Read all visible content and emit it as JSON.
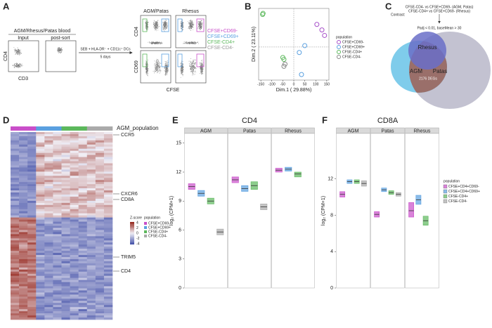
{
  "letters": [
    "A",
    "B",
    "C",
    "D",
    "E",
    "F"
  ],
  "panel_a": {
    "header": "AGM/Rhesus/Patas blood",
    "input": "Input",
    "post_sort": "post-sort",
    "y_label": "CD4",
    "x_label": "CD3",
    "stim": "SEB + HLA-DR⁻ + CD11c⁺ DCs",
    "days": "5 days",
    "col1": "AGM/Patas",
    "col2": "Rhesus",
    "row1": "CD4",
    "row2": "CD69",
    "x_label2": "CFSE",
    "legend": [
      {
        "label": "CFSE+CD69-",
        "color": "#c94fc9"
      },
      {
        "label": "CFSE+CD69+",
        "color": "#5aa0e0"
      },
      {
        "label": "CFSE-CD4+",
        "color": "#5cb85c"
      },
      {
        "label": "CFSE-CD4-",
        "color": "#999999"
      }
    ]
  },
  "panel_c": {
    "contrast": "Contrast:",
    "contrast_lines": [
      "CFSE-CD4- vs CFSE+CD69- (AGM, Patas)",
      "CFSE-CD4+ vs CFSE+CD69- (Rhesus)"
    ],
    "filter": "Padj < 0.01, baseMean > 30",
    "rhesus": "Rhesus",
    "agm": "AGM",
    "patas": "Patas",
    "degs": "2176 DEGs"
  },
  "panel_d": {
    "title": "AGM_population",
    "genes": [
      "CCR5",
      "CXCR6",
      "CD8A",
      "TRIM5",
      "CD4"
    ],
    "zscore_title": "Z-score",
    "zscore_ticks": [
      4,
      2,
      0,
      -2,
      -4
    ],
    "legend_title": "population",
    "legend": [
      {
        "label": "CFSE+CD69-",
        "color": "#c94fc9"
      },
      {
        "label": "CFSE+CD69+",
        "color": "#5aa0e0"
      },
      {
        "label": "CFSE-CD4+",
        "color": "#5cb85c"
      },
      {
        "label": "CFSE-CD4-",
        "color": "#aaaaaa"
      }
    ]
  },
  "chart_data": [
    {
      "type": "scatter",
      "xlabel": "Dim.1 ( 29.88%)",
      "ylabel": "Dim.2 ( 23.11%)",
      "xlim": [
        -160,
        160
      ],
      "ylim": [
        -120,
        140
      ],
      "xticks": [
        -150,
        -100,
        -50,
        0,
        50,
        100,
        150
      ],
      "legend_title": "population",
      "series": [
        {
          "name": "CFSE+CD69-",
          "color": "#a64fc9",
          "x": [
            105,
            128,
            140
          ],
          "y": [
            82,
            62,
            42
          ]
        },
        {
          "name": "CFSE+CD69+",
          "color": "#5aa0e0",
          "x": [
            25,
            50,
            35
          ],
          "y": [
            -20,
            5,
            -100
          ]
        },
        {
          "name": "CFSE-CD4+",
          "color": "#5cb85c",
          "x": [
            -140,
            -142,
            -45,
            -50
          ],
          "y": [
            122,
            118,
            -45,
            -38
          ]
        },
        {
          "name": "CFSE-CD4-",
          "color": "#888888",
          "x": [
            -45,
            -40
          ],
          "y": [
            -70,
            -62
          ]
        }
      ]
    },
    {
      "type": "box",
      "title": "CD4",
      "ylabel": "log₂ (CPM+1)",
      "facets": [
        "AGM",
        "Patas",
        "Rhesus"
      ],
      "ylim": [
        0,
        16
      ],
      "yticks": [
        0,
        3,
        6,
        9,
        12,
        15
      ],
      "series": [
        {
          "name": "CFSE+CD4+CD69-",
          "color": "#c94fc9",
          "q1": [
            10.2,
            10.9,
            12.0
          ],
          "median": [
            10.5,
            11.2,
            12.2
          ],
          "q3": [
            10.8,
            11.5,
            12.4
          ]
        },
        {
          "name": "CFSE+CD4+CD69+",
          "color": "#5aa0e0",
          "q1": [
            9.5,
            10.0,
            12.1
          ],
          "median": [
            9.8,
            10.3,
            12.3
          ],
          "q3": [
            10.1,
            10.6,
            12.5
          ]
        },
        {
          "name": "CFSE-CD4+",
          "color": "#5cb85c",
          "q1": [
            8.7,
            10.2,
            11.5
          ],
          "median": [
            9.0,
            10.6,
            11.8
          ],
          "q3": [
            9.3,
            11.0,
            12.0
          ]
        },
        {
          "name": "CFSE-CD4-",
          "color": "#aaaaaa",
          "q1": [
            5.5,
            8.1,
            null
          ],
          "median": [
            5.8,
            8.4,
            null
          ],
          "q3": [
            6.1,
            8.7,
            null
          ]
        }
      ]
    },
    {
      "type": "box",
      "title": "CD8A",
      "ylabel": "log₂ (CPM+1)",
      "facets": [
        "AGM",
        "Patas",
        "Rhesus"
      ],
      "ylim": [
        0,
        17
      ],
      "yticks": [
        0,
        4,
        8,
        12
      ],
      "legend_title": "population",
      "series": [
        {
          "name": "CFSE+CD4+CD69-",
          "color": "#c94fc9",
          "q1": [
            10.0,
            7.8,
            7.8
          ],
          "median": [
            10.3,
            8.1,
            8.5
          ],
          "q3": [
            10.6,
            8.4,
            9.4
          ]
        },
        {
          "name": "CFSE+CD4+CD69+",
          "color": "#5aa0e0",
          "q1": [
            11.5,
            10.6,
            9.2
          ],
          "median": [
            11.7,
            10.8,
            9.7
          ],
          "q3": [
            11.9,
            11.0,
            10.2
          ]
        },
        {
          "name": "CFSE-CD4+",
          "color": "#5cb85c",
          "q1": [
            11.5,
            10.3,
            6.9
          ],
          "median": [
            11.7,
            10.5,
            7.4
          ],
          "q3": [
            11.9,
            10.7,
            7.9
          ]
        },
        {
          "name": "CFSE-CD4-",
          "color": "#aaaaaa",
          "q1": [
            11.2,
            10.1,
            null
          ],
          "median": [
            11.5,
            10.3,
            null
          ],
          "q3": [
            11.8,
            10.5,
            null
          ]
        }
      ]
    }
  ]
}
